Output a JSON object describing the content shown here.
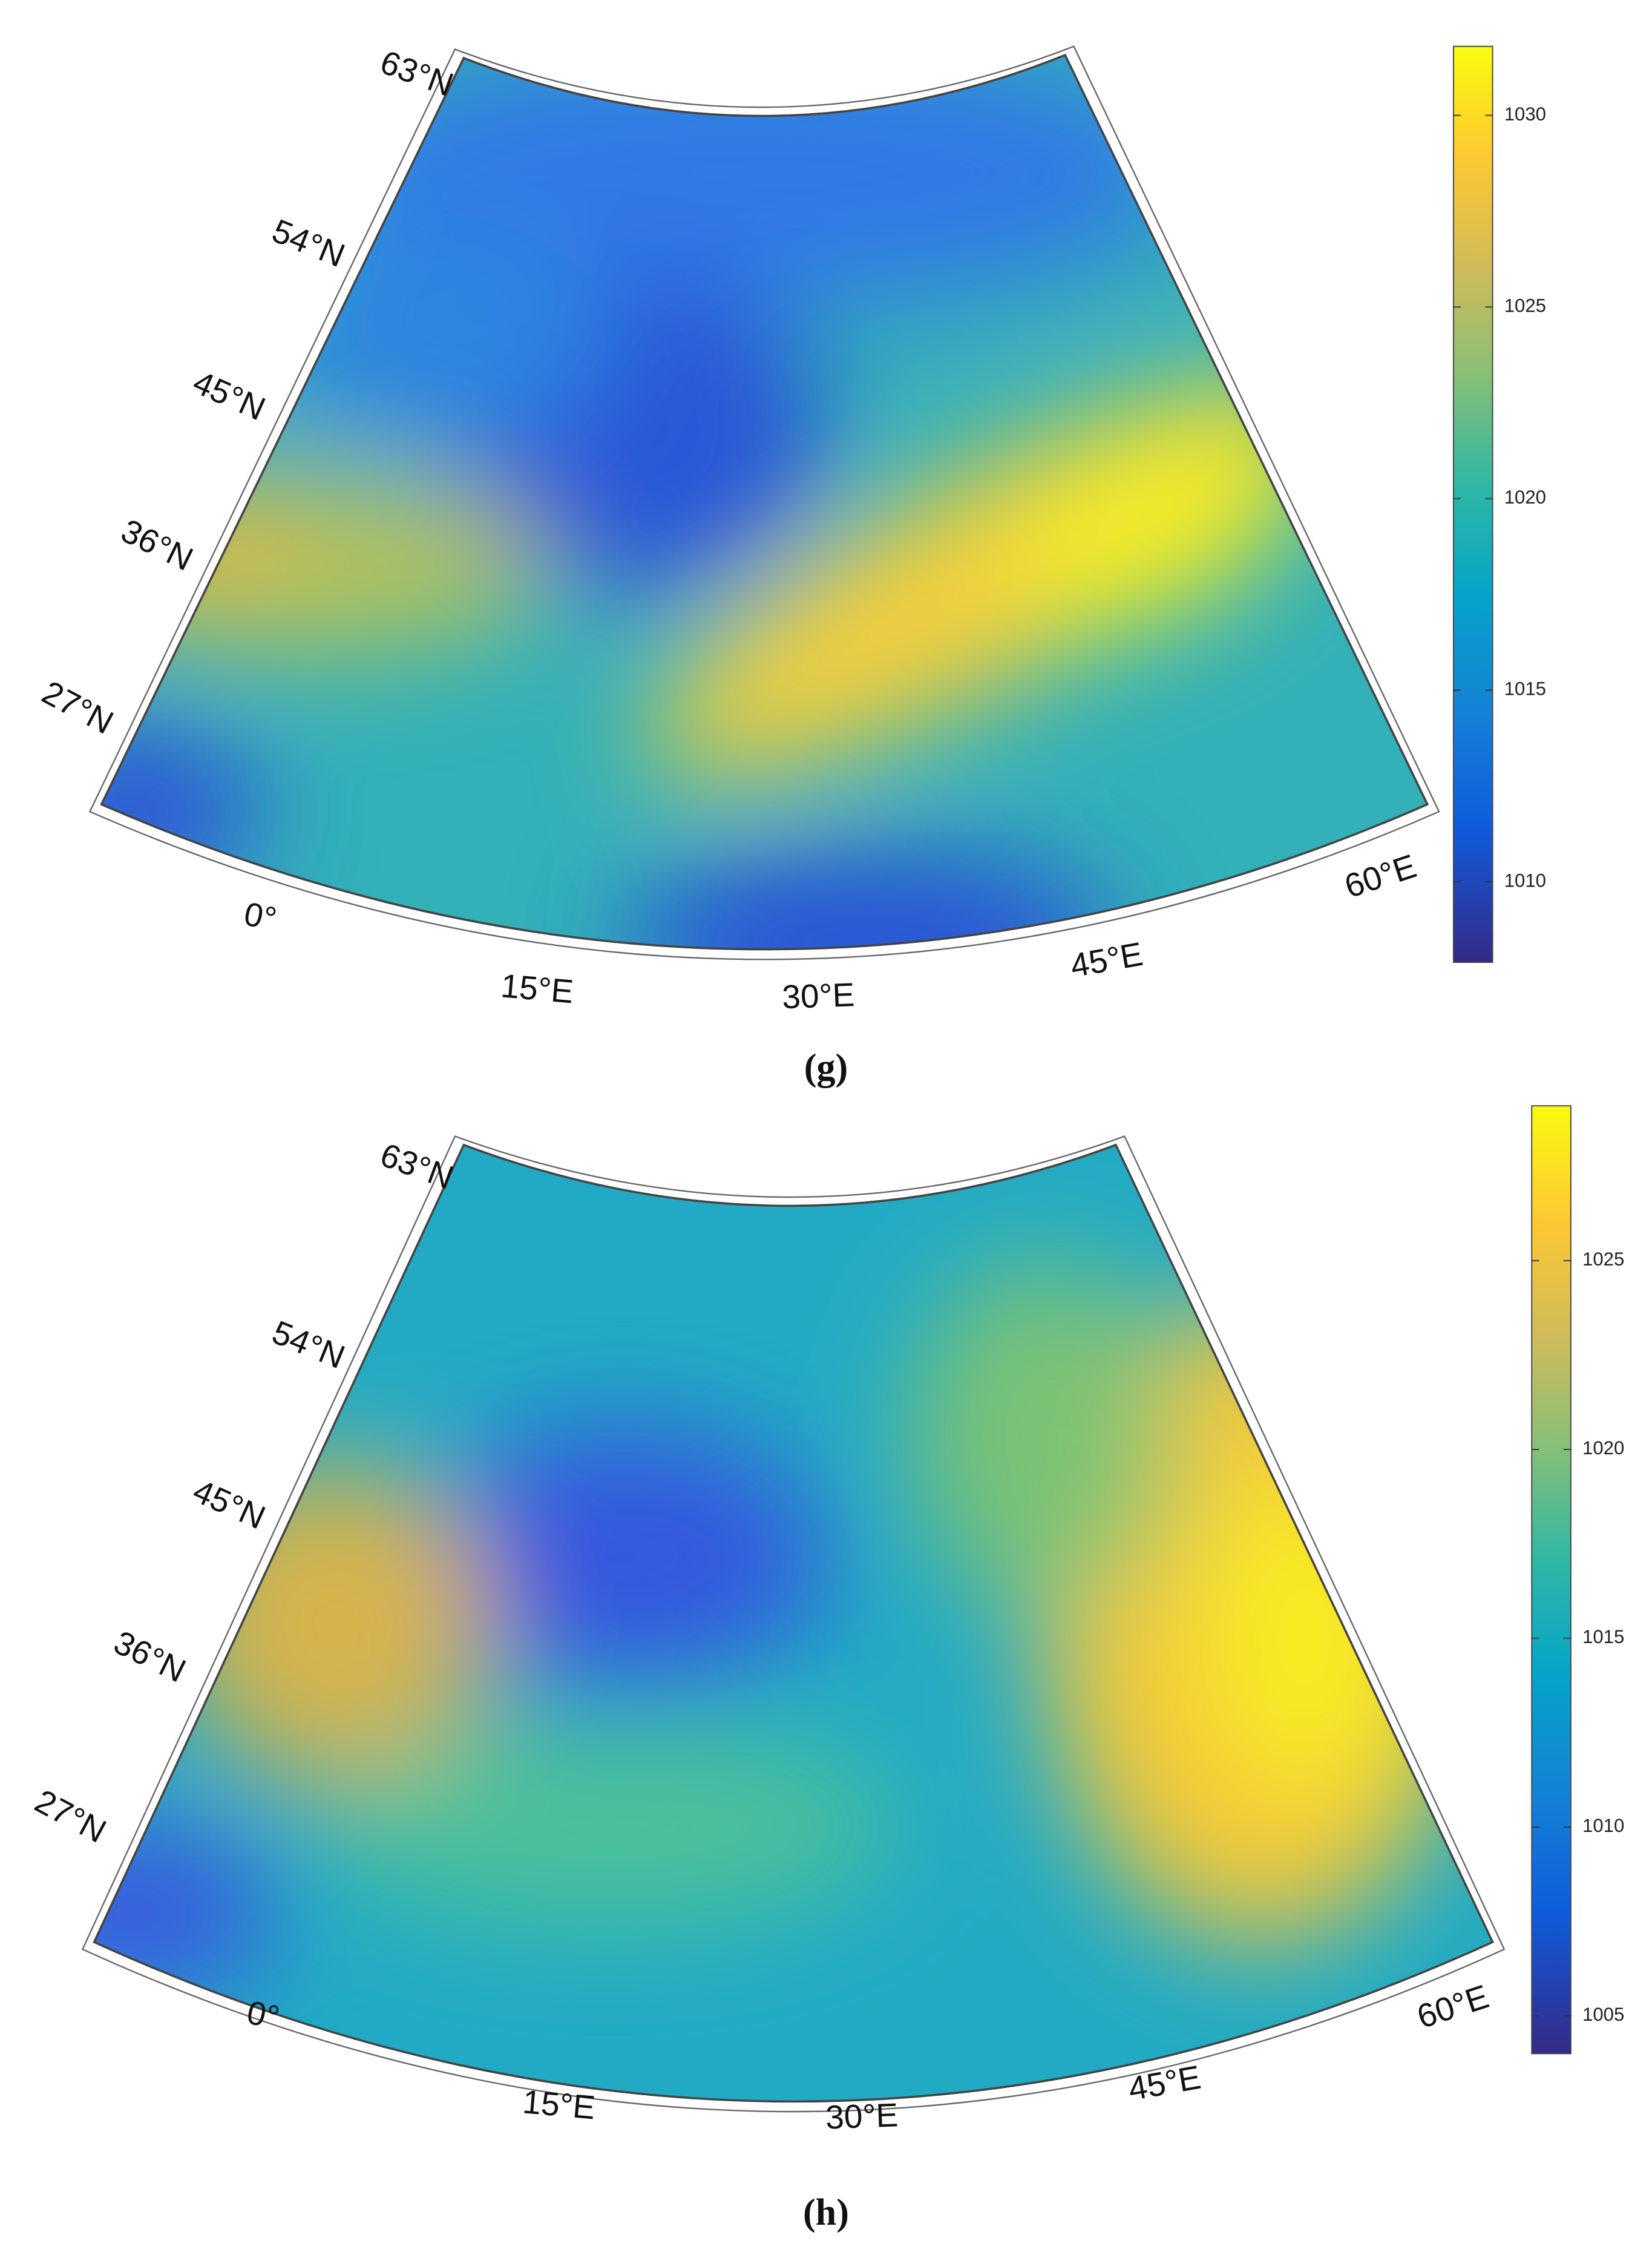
{
  "panels": [
    {
      "caption": "(g)",
      "lat_labels": [
        "63°N",
        "54°N",
        "45°N",
        "36°N",
        "27°N"
      ],
      "lon_labels": [
        "0°",
        "15°E",
        "30°E",
        "45°E",
        "60°E"
      ],
      "colorbar": {
        "range": [
          1007.9,
          1031.8
        ],
        "ticks": [
          1010,
          1015,
          1020,
          1025,
          1030
        ]
      }
    },
    {
      "caption": "(h)",
      "lat_labels": [
        "63°N",
        "54°N",
        "45°N",
        "36°N",
        "27°N"
      ],
      "lon_labels": [
        "0°",
        "15°E",
        "30°E",
        "45°E",
        "60°E"
      ],
      "colorbar": {
        "range": [
          1004.0,
          1029.1
        ],
        "ticks": [
          1005,
          1010,
          1015,
          1020,
          1025
        ]
      }
    }
  ]
}
